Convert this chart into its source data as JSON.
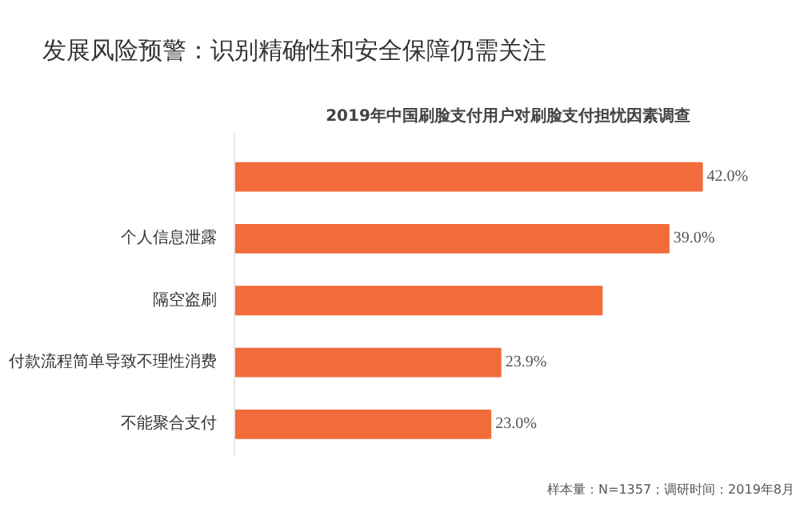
{
  "chart_data": {
    "type": "bar",
    "orientation": "horizontal",
    "title": "发展风险预警：识别精确性和安全保障仍需关注",
    "subtitle": "2019年中国刷脸支付用户对刷脸支付担忧因素调查",
    "categories": [
      null,
      "个人信息泄露",
      "隔空盗刷",
      "付款流程简单导致不理性消费",
      "不能聚合支付"
    ],
    "values": [
      42.0,
      39.0,
      33,
      23.9,
      23.0
    ],
    "value_labels": [
      "42.0%",
      "39.0%",
      null,
      "23.9%",
      "23.0%"
    ],
    "color": "#f26b3a",
    "annotations": [
      "样本量：N=1357；调研时间：2019年8月"
    ]
  }
}
